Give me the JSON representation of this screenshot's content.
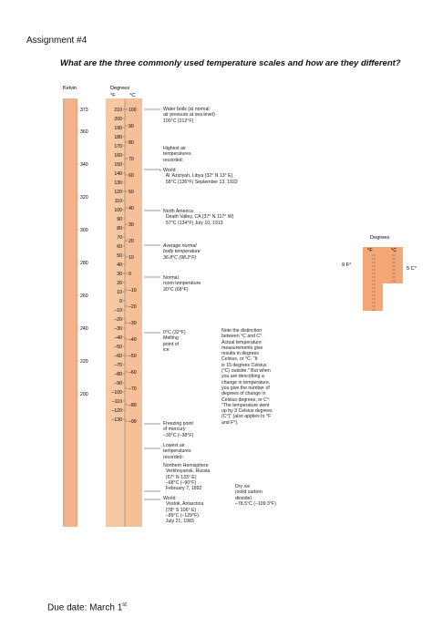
{
  "header": {
    "assignment": "Assignment #4",
    "question": "What are the three commonly used temperature scales and how are they different?",
    "due_label": "Due date: March 1",
    "due_suffix": "st"
  },
  "figure": {
    "kelvin_label": "Kelvin",
    "degrees_label": "Degrees",
    "f_label": "°F",
    "c_label": "°C",
    "kelvin_ticks": [
      "373",
      "360",
      "340",
      "320",
      "300",
      "280",
      "260",
      "240",
      "220",
      "200"
    ],
    "f_ticks": [
      "210",
      "200",
      "190",
      "180",
      "170",
      "160",
      "150",
      "140",
      "130",
      "120",
      "110",
      "100",
      "90",
      "80",
      "70",
      "60",
      "50",
      "40",
      "30",
      "20",
      "10",
      "0",
      "–10",
      "–20",
      "–30",
      "–40",
      "–50",
      "–60",
      "–70",
      "–80",
      "–90",
      "–100",
      "–110",
      "–120",
      "–130"
    ],
    "c_ticks": [
      "100",
      "90",
      "80",
      "70",
      "60",
      "50",
      "40",
      "30",
      "20",
      "10",
      "0",
      "–10",
      "–20",
      "–30",
      "–40",
      "–50",
      "–60",
      "–70",
      "–80",
      "–90"
    ],
    "annotations": {
      "water_boils": "Water boils (at normal\nair pressure at sea level)\n100°C (212°F)",
      "highest": "Highest air\ntemperatures\nrecorded:",
      "world_high": "World\n  Al 'Aziziyah, Libya (32° N 13° E)\n  58°C (136°F) September 13, 1922",
      "na_high": "North America\n  Death Valley, CA (37° N 117° W)\n  57°C (134°F) July 10, 1913",
      "body_temp": "Average normal\nbody temperature\n36.8°C (98.2°F)",
      "room_temp": "Normal\nroom temperature\n20°C (68°F)",
      "melting": "0°C (32°F)\nMelting\npoint of\nice",
      "distinction": "Note the distinction\nbetween °C and C°.\nActual temperature\nmeasurements give\nresults in degrees\nCelsius, or °C. \"It\nis 15 degrees Celsius\n(°C) outside.\" But when\nyou are describing a\nchange in temperature,\nyou give the number of\ndegrees of change in\nCelsius degrees, or C°:\n\"The temperature went\nup by 3 Celsius degrees\n(C°)\" (also applies to °F\nand F°).",
      "mercury": "Freezing point\nof mercury\n–39°C (–38°F)",
      "lowest": "Lowest air\ntemperatures\nrecorded:",
      "nh_low": "Northern Hemisphere\n  Verkhoyansk, Russia\n  (67° N 133° E)\n  –68°C (–90°F)\n  February 7, 1892",
      "world_low": "World\n  Vostok, Antarctica\n  (78° S 106° E)\n  –89°C (–129°F)\n  July 21, 1983",
      "dry_ice": "Dry ice\n(solid carbon\ndioxide)\n–78.5°C (–109.3°F)"
    },
    "inset": {
      "title": "Degrees",
      "f_label": "°F",
      "c_label": "°C",
      "f_change": "9 F°",
      "c_change": "5 C°"
    }
  },
  "colors": {
    "kelvin": "#f3b389",
    "fahrenheit": "#f7c7a2",
    "celsius": "#f5bf98",
    "inset": "#f4a877"
  }
}
